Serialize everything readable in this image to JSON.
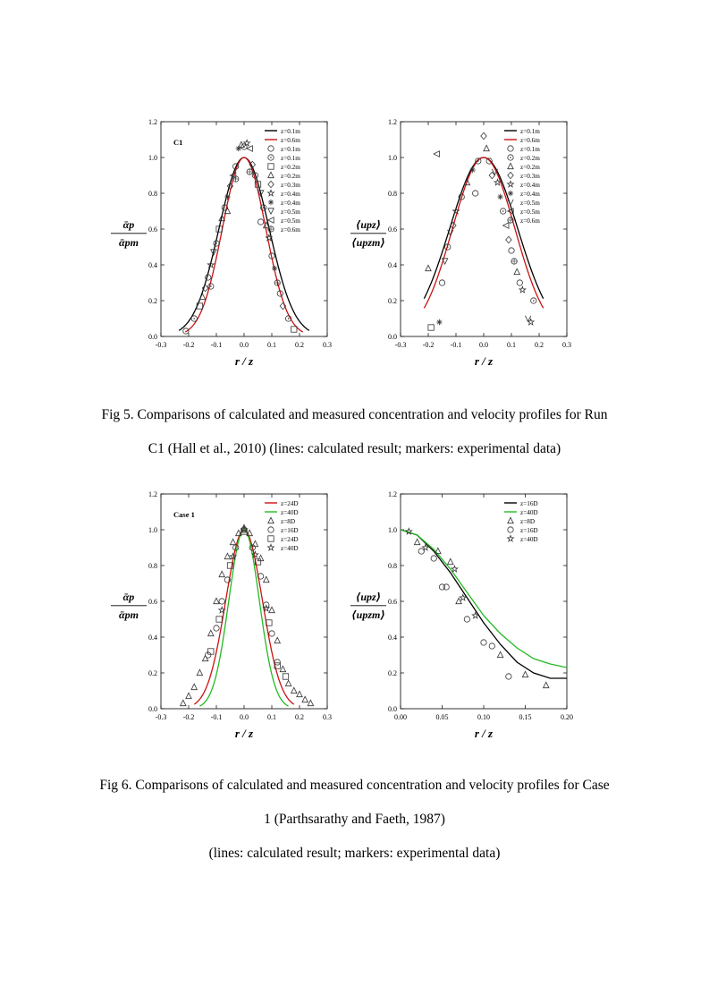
{
  "figures": [
    {
      "caption_lines": [
        "Fig 5. Comparisons of calculated and measured concentration and velocity profiles for Run",
        "C1 (Hall et al., 2010) (lines: calculated result; markers: experimental data)"
      ]
    },
    {
      "caption_lines": [
        "Fig 6. Comparisons of calculated and measured concentration and velocity profiles for Case",
        "1 (Parthsarathy and Faeth, 1987)",
        "(lines: calculated result; markers: experimental data)"
      ]
    }
  ],
  "chart_data": [
    {
      "id": "fig5-left",
      "type": "line",
      "panel_label": "C1",
      "xlabel": "r / z",
      "ylabel_num": "ᾱp",
      "ylabel_den": "ᾱpm",
      "xlim": [
        -0.3,
        0.3
      ],
      "ylim": [
        0.0,
        1.2
      ],
      "xticks": [
        "-0.3",
        "-0.2",
        "-0.1",
        "0.0",
        "0.1",
        "0.2",
        "0.3"
      ],
      "yticks": [
        "0.0",
        "0.2",
        "0.4",
        "0.6",
        "0.8",
        "1.0",
        "1.2"
      ],
      "lines": [
        {
          "name": "z=0.1m",
          "color": "#000000",
          "sigma": 0.09,
          "cut": 0.235
        },
        {
          "name": "z=0.6m",
          "color": "#cc1111",
          "sigma": 0.078,
          "cut": 0.212
        }
      ],
      "legend_markers": [
        {
          "name": "z=0.1m",
          "marker": "circle"
        },
        {
          "name": "z=0.1m",
          "marker": "circle-dot"
        },
        {
          "name": "z=0.2m",
          "marker": "square"
        },
        {
          "name": "z=0.2m",
          "marker": "triangle"
        },
        {
          "name": "z=0.3m",
          "marker": "diamond"
        },
        {
          "name": "z=0.4m",
          "marker": "star"
        },
        {
          "name": "z=0.4m",
          "marker": "asterisk"
        },
        {
          "name": "z=0.5m",
          "marker": "triangle-down"
        },
        {
          "name": "z=0.5m",
          "marker": "triangle-left"
        },
        {
          "name": "z=0.6m",
          "marker": "hex"
        }
      ],
      "points": [
        [
          -0.21,
          0.03,
          "circle"
        ],
        [
          -0.18,
          0.1,
          "circle-dot"
        ],
        [
          -0.16,
          0.17,
          "square"
        ],
        [
          -0.15,
          0.22,
          "triangle"
        ],
        [
          -0.14,
          0.27,
          "diamond"
        ],
        [
          -0.13,
          0.33,
          "circle"
        ],
        [
          -0.12,
          0.4,
          "star"
        ],
        [
          -0.11,
          0.47,
          "triangle-down"
        ],
        [
          -0.1,
          0.52,
          "circle-dot"
        ],
        [
          -0.09,
          0.6,
          "square"
        ],
        [
          -0.08,
          0.66,
          "triangle"
        ],
        [
          -0.07,
          0.72,
          "circle"
        ],
        [
          -0.06,
          0.78,
          "asterisk"
        ],
        [
          -0.05,
          0.84,
          "diamond"
        ],
        [
          -0.04,
          0.9,
          "triangle-left"
        ],
        [
          -0.03,
          0.95,
          "circle"
        ],
        [
          -0.02,
          1.05,
          "asterisk"
        ],
        [
          -0.01,
          1.07,
          "triangle"
        ],
        [
          0.0,
          1.06,
          "circle-dot"
        ],
        [
          0.01,
          1.08,
          "star"
        ],
        [
          0.02,
          1.05,
          "triangle-left"
        ],
        [
          0.03,
          0.96,
          "diamond"
        ],
        [
          0.04,
          0.9,
          "circle"
        ],
        [
          0.05,
          0.85,
          "square"
        ],
        [
          0.06,
          0.8,
          "triangle-down"
        ],
        [
          0.07,
          0.72,
          "circle-dot"
        ],
        [
          0.08,
          0.62,
          "triangle"
        ],
        [
          0.09,
          0.55,
          "star"
        ],
        [
          0.1,
          0.45,
          "circle"
        ],
        [
          0.11,
          0.38,
          "asterisk"
        ],
        [
          0.12,
          0.3,
          "hex"
        ],
        [
          0.13,
          0.24,
          "circle"
        ],
        [
          0.14,
          0.17,
          "diamond"
        ],
        [
          0.16,
          0.1,
          "circle-dot"
        ],
        [
          0.18,
          0.04,
          "square"
        ],
        [
          -0.03,
          0.88,
          "hex"
        ],
        [
          0.02,
          0.92,
          "hex"
        ],
        [
          -0.06,
          0.7,
          "triangle"
        ],
        [
          0.06,
          0.64,
          "circle"
        ],
        [
          -0.12,
          0.28,
          "circle-dot"
        ]
      ]
    },
    {
      "id": "fig5-right",
      "type": "line",
      "xlabel": "r / z",
      "ylabel_num": "⟨upz⟩",
      "ylabel_den": "⟨upzm⟩",
      "xlim": [
        -0.3,
        0.3
      ],
      "ylim": [
        0.0,
        1.2
      ],
      "xticks": [
        "-0.3",
        "-0.2",
        "-0.1",
        "0.0",
        "0.1",
        "0.2",
        "0.3"
      ],
      "yticks": [
        "0.0",
        "0.2",
        "0.4",
        "0.6",
        "0.8",
        "1.0",
        "1.2"
      ],
      "lines": [
        {
          "name": "z=0.1m",
          "color": "#000000",
          "sigma": 0.122,
          "cut": 0.215
        },
        {
          "name": "z=0.6m",
          "color": "#cc1111",
          "sigma": 0.112,
          "cut": 0.215
        }
      ],
      "legend_markers": [
        {
          "name": "z=0.1m",
          "marker": "circle"
        },
        {
          "name": "z=0.2m",
          "marker": "circle-dot"
        },
        {
          "name": "z=0.2m",
          "marker": "triangle"
        },
        {
          "name": "z=0.3m",
          "marker": "diamond"
        },
        {
          "name": "z=0.4m",
          "marker": "star"
        },
        {
          "name": "z=0.4m",
          "marker": "asterisk"
        },
        {
          "name": "z=0.5m",
          "marker": "v"
        },
        {
          "name": "z=0.5m",
          "marker": "triangle-left"
        },
        {
          "name": "z=0.6m",
          "marker": "hex"
        }
      ],
      "points": [
        [
          -0.2,
          0.38,
          "triangle"
        ],
        [
          -0.19,
          0.05,
          "square"
        ],
        [
          -0.17,
          1.02,
          "triangle-left"
        ],
        [
          -0.16,
          0.08,
          "asterisk"
        ],
        [
          -0.15,
          0.3,
          "circle"
        ],
        [
          -0.14,
          0.42,
          "triangle-down"
        ],
        [
          -0.13,
          0.5,
          "circle-dot"
        ],
        [
          -0.12,
          0.58,
          "v"
        ],
        [
          -0.11,
          0.62,
          "diamond"
        ],
        [
          -0.1,
          0.7,
          "star"
        ],
        [
          -0.08,
          0.78,
          "circle"
        ],
        [
          -0.06,
          0.86,
          "triangle"
        ],
        [
          -0.04,
          0.93,
          "asterisk"
        ],
        [
          -0.02,
          0.98,
          "circle-dot"
        ],
        [
          0.0,
          1.12,
          "diamond"
        ],
        [
          0.01,
          1.05,
          "triangle"
        ],
        [
          0.02,
          0.98,
          "circle"
        ],
        [
          0.04,
          0.92,
          "v"
        ],
        [
          0.05,
          0.86,
          "star"
        ],
        [
          0.06,
          0.78,
          "asterisk"
        ],
        [
          0.07,
          0.7,
          "circle-dot"
        ],
        [
          0.08,
          0.62,
          "triangle-left"
        ],
        [
          0.09,
          0.54,
          "diamond"
        ],
        [
          0.1,
          0.48,
          "circle"
        ],
        [
          0.11,
          0.42,
          "hex"
        ],
        [
          0.12,
          0.36,
          "triangle"
        ],
        [
          0.13,
          0.3,
          "circle"
        ],
        [
          0.14,
          0.26,
          "star"
        ],
        [
          0.16,
          0.1,
          "v"
        ],
        [
          0.17,
          0.08,
          "star"
        ],
        [
          0.18,
          0.2,
          "circle-dot"
        ],
        [
          -0.03,
          0.8,
          "circle"
        ],
        [
          0.03,
          0.9,
          "diamond"
        ]
      ]
    },
    {
      "id": "fig6-left",
      "type": "line",
      "panel_label": "Case 1",
      "xlabel": "r / z",
      "ylabel_num": "ᾱp",
      "ylabel_den": "ᾱpm",
      "xlim": [
        -0.3,
        0.3
      ],
      "ylim": [
        0.0,
        1.2
      ],
      "xticks": [
        "-0.3",
        "-0.2",
        "-0.1",
        "0.0",
        "0.1",
        "0.2",
        "0.3"
      ],
      "yticks": [
        "0.0",
        "0.2",
        "0.4",
        "0.6",
        "0.8",
        "1.0",
        "1.2"
      ],
      "lines": [
        {
          "name": "z=24D",
          "color": "#cc1111",
          "sigma": 0.066,
          "cut": 0.18
        },
        {
          "name": "z=40D",
          "color": "#22bb22",
          "sigma": 0.055,
          "cut": 0.16
        }
      ],
      "legend_markers": [
        {
          "name": "z=8D",
          "marker": "triangle"
        },
        {
          "name": "z=16D",
          "marker": "circle"
        },
        {
          "name": "z=24D",
          "marker": "square"
        },
        {
          "name": "z=40D",
          "marker": "star"
        }
      ],
      "points": [
        [
          -0.22,
          0.03,
          "triangle"
        ],
        [
          -0.2,
          0.07,
          "triangle"
        ],
        [
          -0.18,
          0.12,
          "triangle"
        ],
        [
          -0.16,
          0.2,
          "triangle"
        ],
        [
          -0.14,
          0.28,
          "triangle"
        ],
        [
          -0.12,
          0.42,
          "triangle"
        ],
        [
          -0.1,
          0.6,
          "triangle"
        ],
        [
          -0.08,
          0.75,
          "triangle"
        ],
        [
          -0.06,
          0.85,
          "triangle"
        ],
        [
          -0.04,
          0.93,
          "triangle"
        ],
        [
          -0.02,
          0.98,
          "triangle"
        ],
        [
          0.0,
          1.01,
          "triangle"
        ],
        [
          0.02,
          0.98,
          "triangle"
        ],
        [
          0.04,
          0.92,
          "triangle"
        ],
        [
          0.06,
          0.84,
          "triangle"
        ],
        [
          0.08,
          0.72,
          "triangle"
        ],
        [
          0.1,
          0.55,
          "triangle"
        ],
        [
          0.12,
          0.38,
          "triangle"
        ],
        [
          0.14,
          0.22,
          "triangle"
        ],
        [
          0.16,
          0.14,
          "triangle"
        ],
        [
          0.18,
          0.1,
          "triangle"
        ],
        [
          0.2,
          0.08,
          "triangle"
        ],
        [
          0.22,
          0.05,
          "triangle"
        ],
        [
          0.24,
          0.03,
          "triangle"
        ],
        [
          -0.13,
          0.3,
          "circle"
        ],
        [
          -0.1,
          0.45,
          "circle"
        ],
        [
          -0.08,
          0.6,
          "circle"
        ],
        [
          -0.06,
          0.72,
          "circle"
        ],
        [
          -0.03,
          0.9,
          "circle"
        ],
        [
          0.0,
          1.0,
          "circle"
        ],
        [
          0.03,
          0.9,
          "circle"
        ],
        [
          0.06,
          0.74,
          "circle"
        ],
        [
          0.08,
          0.58,
          "circle"
        ],
        [
          0.1,
          0.42,
          "circle"
        ],
        [
          0.12,
          0.26,
          "circle"
        ],
        [
          -0.12,
          0.32,
          "square"
        ],
        [
          -0.09,
          0.5,
          "square"
        ],
        [
          -0.05,
          0.8,
          "square"
        ],
        [
          0.0,
          0.99,
          "square"
        ],
        [
          0.05,
          0.82,
          "square"
        ],
        [
          0.09,
          0.48,
          "square"
        ],
        [
          0.12,
          0.24,
          "square"
        ],
        [
          0.15,
          0.18,
          "square"
        ],
        [
          -0.08,
          0.55,
          "star"
        ],
        [
          -0.04,
          0.85,
          "star"
        ],
        [
          0.0,
          1.0,
          "star"
        ],
        [
          0.04,
          0.86,
          "star"
        ],
        [
          0.08,
          0.56,
          "star"
        ]
      ]
    },
    {
      "id": "fig6-right",
      "type": "line",
      "xlabel": "r / z",
      "ylabel_num": "⟨upz⟩",
      "ylabel_den": "⟨upzm⟩",
      "xlim": [
        0.0,
        0.2
      ],
      "ylim": [
        0.0,
        1.2
      ],
      "xticks": [
        "0.00",
        "0.05",
        "0.10",
        "0.15",
        "0.20"
      ],
      "yticks": [
        "0.0",
        "0.2",
        "0.4",
        "0.6",
        "0.8",
        "1.0",
        "1.2"
      ],
      "line_series": [
        {
          "name": "z=16D",
          "color": "#000000",
          "x": [
            0.0,
            0.02,
            0.04,
            0.06,
            0.08,
            0.1,
            0.12,
            0.14,
            0.16,
            0.18,
            0.2
          ],
          "y": [
            1.0,
            0.97,
            0.88,
            0.76,
            0.62,
            0.48,
            0.36,
            0.26,
            0.2,
            0.17,
            0.17
          ]
        },
        {
          "name": "z=40D",
          "color": "#22bb22",
          "x": [
            0.0,
            0.02,
            0.04,
            0.06,
            0.08,
            0.1,
            0.12,
            0.14,
            0.16,
            0.18,
            0.2
          ],
          "y": [
            1.0,
            0.97,
            0.89,
            0.78,
            0.65,
            0.52,
            0.42,
            0.34,
            0.28,
            0.25,
            0.23
          ]
        }
      ],
      "legend_markers": [
        {
          "name": "z=8D",
          "marker": "triangle"
        },
        {
          "name": "z=16D",
          "marker": "circle"
        },
        {
          "name": "z=40D",
          "marker": "star"
        }
      ],
      "points": [
        [
          0.01,
          0.99,
          "star"
        ],
        [
          0.02,
          0.93,
          "triangle"
        ],
        [
          0.025,
          0.88,
          "circle"
        ],
        [
          0.03,
          0.9,
          "star"
        ],
        [
          0.04,
          0.84,
          "circle"
        ],
        [
          0.045,
          0.88,
          "triangle"
        ],
        [
          0.05,
          0.68,
          "circle"
        ],
        [
          0.055,
          0.68,
          "circle"
        ],
        [
          0.06,
          0.82,
          "triangle"
        ],
        [
          0.065,
          0.78,
          "star"
        ],
        [
          0.07,
          0.6,
          "triangle"
        ],
        [
          0.075,
          0.62,
          "star"
        ],
        [
          0.08,
          0.5,
          "circle"
        ],
        [
          0.09,
          0.52,
          "star"
        ],
        [
          0.1,
          0.37,
          "circle"
        ],
        [
          0.11,
          0.35,
          "circle"
        ],
        [
          0.12,
          0.3,
          "triangle"
        ],
        [
          0.13,
          0.18,
          "circle"
        ],
        [
          0.15,
          0.19,
          "triangle"
        ],
        [
          0.175,
          0.13,
          "triangle"
        ]
      ]
    }
  ]
}
